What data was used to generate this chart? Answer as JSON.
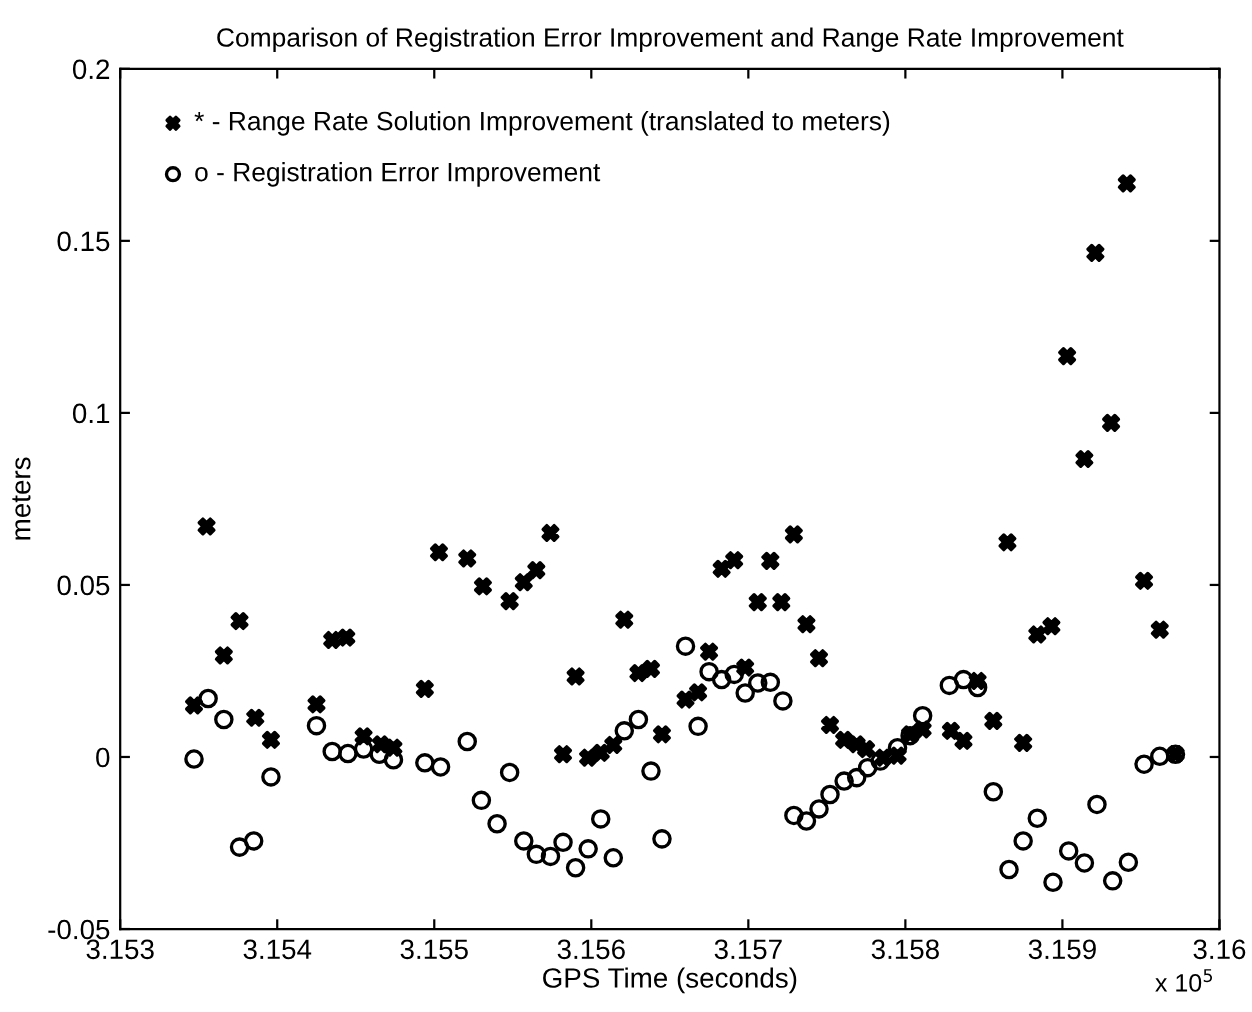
{
  "chart_data": {
    "type": "scatter",
    "title": "Comparison of Registration Error Improvement and Range Rate Improvement",
    "xlabel": "GPS Time (seconds)",
    "ylabel": "meters",
    "annotations": [
      "x 10$^{5}$"
    ],
    "xlim": [
      3.153,
      3.16
    ],
    "xticks": [
      3.153,
      3.154,
      3.155,
      3.156,
      3.157,
      3.158,
      3.159,
      3.16
    ],
    "ylim": [
      -0.05,
      0.2
    ],
    "yticks": [
      -0.05,
      0,
      0.05,
      0.1,
      0.15,
      0.2
    ],
    "grid": false,
    "legend": "top left",
    "series": [
      {
        "name": "* - Range Rate Solution Improvement (translated to meters)",
        "color": "#000000",
        "marker": "cross",
        "x": [
          3.15347,
          3.15355,
          3.15366,
          3.15376,
          3.15386,
          3.15396,
          3.15425,
          3.15435,
          3.15444,
          3.15455,
          3.15466,
          3.15474,
          3.15494,
          3.15503,
          3.15521,
          3.15531,
          3.15548,
          3.15557,
          3.15565,
          3.15574,
          3.15582,
          3.1559,
          3.15598,
          3.15606,
          3.15614,
          3.15621,
          3.1563,
          3.15638,
          3.15645,
          3.1566,
          3.15668,
          3.15675,
          3.15683,
          3.15691,
          3.15698,
          3.15706,
          3.15714,
          3.15721,
          3.15729,
          3.15737,
          3.15745,
          3.15752,
          3.15761,
          3.15769,
          3.15775,
          3.15786,
          3.15795,
          3.15803,
          3.15811,
          3.15829,
          3.15837,
          3.15846,
          3.15856,
          3.15865,
          3.15875,
          3.15884,
          3.15893,
          3.15903,
          3.15914,
          3.15921,
          3.15931,
          3.15941,
          3.15952,
          3.15962,
          3.15972
        ],
        "values": [
          0.015,
          0.067,
          0.0295,
          0.0395,
          0.0114,
          0.005,
          0.0153,
          0.034,
          0.0347,
          0.006,
          0.0037,
          0.0027,
          0.0198,
          0.0595,
          0.0577,
          0.0496,
          0.0453,
          0.0508,
          0.0543,
          0.0651,
          0.0008,
          0.0234,
          -0.0002,
          0.0012,
          0.0035,
          0.0399,
          0.0244,
          0.0256,
          0.0066,
          0.0167,
          0.0188,
          0.0306,
          0.0547,
          0.0572,
          0.026,
          0.045,
          0.057,
          0.045,
          0.0647,
          0.0386,
          0.0287,
          0.0093,
          0.005,
          0.0037,
          0.0023,
          -0.0002,
          0.0004,
          0.0066,
          0.008,
          0.0076,
          0.0047,
          0.0221,
          0.0105,
          0.0624,
          0.0041,
          0.0356,
          0.038,
          0.1165,
          0.0866,
          0.1465,
          0.0971,
          0.1667,
          0.0512,
          0.037,
          0.0008
        ]
      },
      {
        "name": "o - Registration Error Improvement",
        "color": "#000000",
        "marker": "circle",
        "x": [
          3.15347,
          3.15356,
          3.15366,
          3.15376,
          3.15385,
          3.15396,
          3.15425,
          3.15435,
          3.15445,
          3.15455,
          3.15465,
          3.15474,
          3.15494,
          3.15504,
          3.15521,
          3.1553,
          3.1554,
          3.15548,
          3.15557,
          3.15565,
          3.15574,
          3.15582,
          3.1559,
          3.15598,
          3.15606,
          3.15614,
          3.15621,
          3.1563,
          3.15638,
          3.15645,
          3.1566,
          3.15668,
          3.15675,
          3.15683,
          3.15691,
          3.15698,
          3.15706,
          3.15714,
          3.15722,
          3.15729,
          3.15737,
          3.15745,
          3.15752,
          3.15761,
          3.15769,
          3.15776,
          3.15784,
          3.15795,
          3.15803,
          3.15811,
          3.15828,
          3.15837,
          3.15846,
          3.15856,
          3.15866,
          3.15875,
          3.15884,
          3.15894,
          3.15904,
          3.15914,
          3.15922,
          3.15932,
          3.15942,
          3.15952,
          3.15962,
          3.15972
        ],
        "values": [
          -0.0006,
          0.017,
          0.0109,
          -0.0262,
          -0.0244,
          -0.0058,
          0.0091,
          0.0016,
          0.001,
          0.0023,
          0.0008,
          -0.0008,
          -0.0017,
          -0.0029,
          0.0045,
          -0.0126,
          -0.0194,
          -0.0045,
          -0.0244,
          -0.0283,
          -0.0289,
          -0.0248,
          -0.0322,
          -0.0267,
          -0.018,
          -0.0293,
          0.0076,
          0.0109,
          -0.0041,
          -0.0238,
          0.0322,
          0.0089,
          0.0248,
          0.0225,
          0.024,
          0.0186,
          0.0215,
          0.0217,
          0.0163,
          -0.017,
          -0.0186,
          -0.0151,
          -0.0109,
          -0.007,
          -0.006,
          -0.0031,
          -0.0012,
          0.0027,
          0.0062,
          0.012,
          0.0208,
          0.0225,
          0.0202,
          -0.0101,
          -0.0327,
          -0.0244,
          -0.0178,
          -0.0364,
          -0.0273,
          -0.0308,
          -0.0138,
          -0.036,
          -0.0306,
          -0.0021,
          0.0002,
          0.0008
        ]
      }
    ]
  }
}
